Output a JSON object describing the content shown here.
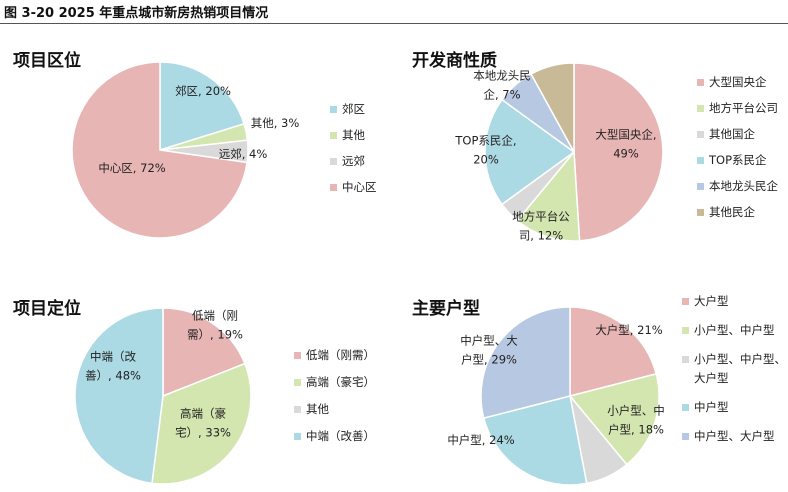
{
  "figure_title": "图 3-20 2025 年重点城市新房热销项目情况",
  "chart_data": [
    {
      "type": "pie",
      "title": "项目区位",
      "series": [
        {
          "name": "郊区",
          "value": 20,
          "color": "#abdae4",
          "label": [
            "郊区, 20%"
          ]
        },
        {
          "name": "其他",
          "value": 3,
          "color": "#d4e6b0",
          "label": [
            "其他, 3%"
          ]
        },
        {
          "name": "远郊",
          "value": 4,
          "color": "#d9d9d9",
          "label": [
            "远郊, 4%"
          ]
        },
        {
          "name": "中心区",
          "value": 72,
          "color": "#e8b5b5",
          "label": [
            "中心区, 72%"
          ]
        }
      ]
    },
    {
      "type": "pie",
      "title": "开发商性质",
      "series": [
        {
          "name": "大型国央企",
          "value": 49,
          "color": "#e8b5b5",
          "label": [
            "大型国央企,",
            "49%"
          ]
        },
        {
          "name": "地方平台公司",
          "value": 12,
          "color": "#d4e6b0",
          "label": [
            "地方平台公",
            "司, 12%"
          ]
        },
        {
          "name": "其他国企",
          "value": 4,
          "color": "#d9d9d9",
          "label": []
        },
        {
          "name": "TOP系民企",
          "value": 20,
          "color": "#abdae4",
          "label": [
            "TOP系民企,",
            "20%"
          ]
        },
        {
          "name": "本地龙头民企",
          "value": 7,
          "color": "#b7c8e2",
          "label": [
            "本地龙头民",
            "企, 7%"
          ]
        },
        {
          "name": "其他民企",
          "value": 8,
          "color": "#c8b997",
          "label": []
        }
      ]
    },
    {
      "type": "pie",
      "title": "项目定位",
      "series": [
        {
          "name": "低端（刚需）",
          "value": 19,
          "color": "#e8b5b5",
          "label": [
            "低端（刚",
            "需）, 19%"
          ]
        },
        {
          "name": "高端（豪宅）",
          "value": 33,
          "color": "#d4e6b0",
          "label": [
            "高端（豪",
            "宅）, 33%"
          ]
        },
        {
          "name": "其他",
          "value": 0,
          "color": "#d9d9d9",
          "label": []
        },
        {
          "name": "中端（改善）",
          "value": 48,
          "color": "#abdae4",
          "label": [
            "中端（改",
            "善）, 48%"
          ]
        }
      ]
    },
    {
      "type": "pie",
      "title": "主要户型",
      "series": [
        {
          "name": "大户型",
          "value": 21,
          "color": "#e8b5b5",
          "label": [
            "大户型, 21%"
          ]
        },
        {
          "name": "小户型、中户型",
          "value": 18,
          "color": "#d4e6b0",
          "label": [
            "小户型、中",
            "户型, 18%"
          ]
        },
        {
          "name": "小户型、中户型、大户型",
          "value": 8,
          "color": "#d9d9d9",
          "label": []
        },
        {
          "name": "中户型",
          "value": 24,
          "color": "#abdae4",
          "label": [
            "中户型, 24%"
          ]
        },
        {
          "name": "中户型、大户型",
          "value": 29,
          "color": "#b7c8e2",
          "label": [
            "中户型、大",
            "户型, 29%"
          ]
        }
      ],
      "legend_labels": [
        [
          "大户型"
        ],
        [
          "小户型、中户型"
        ],
        [
          "小户型、中户型、",
          "大户型"
        ],
        [
          "中户型"
        ],
        [
          "中户型、大户型"
        ]
      ]
    }
  ]
}
